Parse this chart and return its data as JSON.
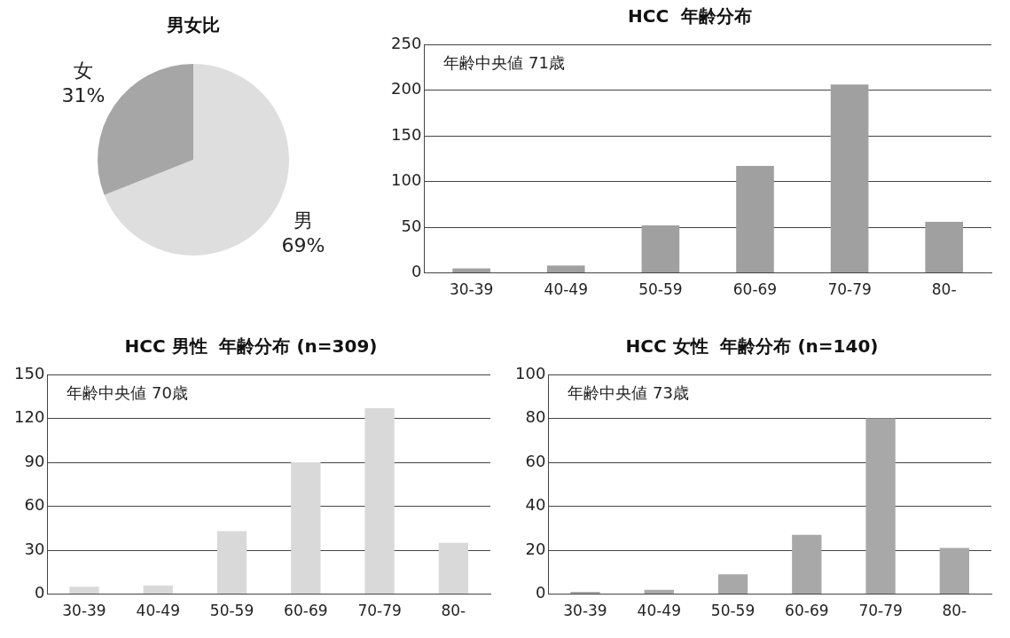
{
  "chart_data": [
    {
      "type": "pie",
      "title": "男女比",
      "categories": [
        "男",
        "女"
      ],
      "values": [
        69,
        31
      ],
      "colors": [
        "#dedede",
        "#a6a6a6"
      ],
      "value_labels": [
        "69%",
        "31%"
      ],
      "legend": false
    },
    {
      "type": "bar",
      "title": "HCC  年齢分布",
      "categories": [
        "30-39",
        "40-49",
        "50-59",
        "60-69",
        "70-79",
        "80-"
      ],
      "values": [
        5,
        8,
        52,
        117,
        206,
        56
      ],
      "color": "#a0a0a0",
      "ylim": [
        0,
        250
      ],
      "yticks": [
        0,
        50,
        100,
        150,
        200,
        250
      ],
      "grid": "y",
      "legend": false,
      "annotations": [
        "年齢中央値 71歳"
      ]
    },
    {
      "type": "bar",
      "title": "HCC 男性  年齢分布 (n=309)",
      "categories": [
        "30-39",
        "40-49",
        "50-59",
        "60-69",
        "70-79",
        "80-"
      ],
      "values": [
        5,
        6,
        43,
        90,
        127,
        35
      ],
      "color": "#d9d9d9",
      "ylim": [
        0,
        150
      ],
      "yticks": [
        0,
        30,
        60,
        90,
        120,
        150
      ],
      "grid": "y",
      "legend": false,
      "annotations": [
        "年齢中央値 70歳"
      ]
    },
    {
      "type": "bar",
      "title": "HCC 女性  年齢分布 (n=140)",
      "categories": [
        "30-39",
        "40-49",
        "50-59",
        "60-69",
        "70-79",
        "80-"
      ],
      "values": [
        1,
        2,
        9,
        27,
        80,
        21
      ],
      "color": "#a8a8a8",
      "ylim": [
        0,
        100
      ],
      "yticks": [
        0,
        20,
        40,
        60,
        80,
        100
      ],
      "grid": "y",
      "legend": false,
      "annotations": [
        "年齢中央値 73歳"
      ]
    }
  ]
}
